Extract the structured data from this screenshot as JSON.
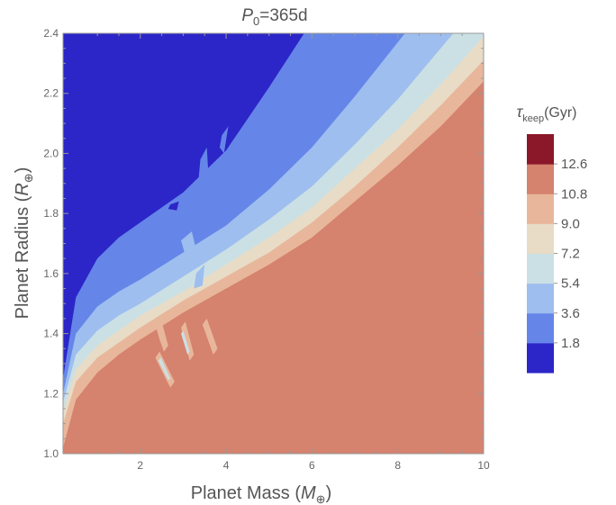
{
  "chart_data": {
    "type": "heatmap",
    "title": {
      "sym": "P",
      "sub": "0",
      "rest": "=365d"
    },
    "xlabel": {
      "text": "Planet Mass (",
      "sym": "M",
      "sub": "⊕",
      "close": ")"
    },
    "ylabel": {
      "text": "Planet Radius (",
      "sym": "R",
      "sub": "⊕",
      "close": ")"
    },
    "xlim": [
      0.2,
      10
    ],
    "ylim": [
      1.0,
      2.4
    ],
    "x_ticks": [
      2,
      4,
      6,
      8,
      10
    ],
    "y_ticks": [
      1.0,
      1.2,
      1.4,
      1.6,
      1.8,
      2.0,
      2.2,
      2.4
    ],
    "colorbar": {
      "label": {
        "sym": "τ",
        "sub": "keep",
        "rest": "(Gyr)"
      },
      "levels": [
        1.8,
        3.6,
        5.4,
        7.2,
        9.0,
        10.8,
        12.6
      ],
      "level_labels": [
        "1.8",
        "3.6",
        "5.4",
        "7.2",
        "9.0",
        "10.8",
        "12.6"
      ],
      "colors": [
        "#2c26c8",
        "#6586e8",
        "#9ebef0",
        "#cbe0e4",
        "#e8dcc7",
        "#e8b79b",
        "#d5826e",
        "#8a1829"
      ]
    },
    "boundaries_radius_vs_mass": {
      "mass": [
        0.2,
        0.5,
        1,
        1.5,
        2,
        3,
        4,
        5,
        6,
        7,
        8,
        9,
        10
      ],
      "contours": [
        {
          "level": 12.6,
          "radius": [
            1.02,
            1.18,
            1.27,
            1.33,
            1.38,
            1.47,
            1.55,
            1.63,
            1.72,
            1.84,
            1.96,
            2.09,
            2.24
          ]
        },
        {
          "level": 10.8,
          "radius": [
            1.1,
            1.24,
            1.32,
            1.37,
            1.42,
            1.51,
            1.59,
            1.67,
            1.77,
            1.89,
            2.02,
            2.16,
            2.31
          ]
        },
        {
          "level": 9.0,
          "radius": [
            1.14,
            1.28,
            1.36,
            1.41,
            1.46,
            1.54,
            1.63,
            1.72,
            1.82,
            1.95,
            2.08,
            2.23,
            2.39
          ]
        },
        {
          "level": 7.2,
          "radius": [
            1.17,
            1.33,
            1.41,
            1.46,
            1.5,
            1.59,
            1.68,
            1.78,
            1.89,
            2.03,
            2.18,
            2.35,
            2.52
          ]
        },
        {
          "level": 5.4,
          "radius": [
            1.2,
            1.4,
            1.49,
            1.54,
            1.58,
            1.67,
            1.76,
            1.88,
            2.02,
            2.19,
            2.37,
            2.55,
            2.72
          ]
        },
        {
          "level": 3.6,
          "radius": [
            1.25,
            1.52,
            1.65,
            1.72,
            1.77,
            1.87,
            2.01,
            2.22,
            2.44,
            2.65,
            2.85,
            3.0,
            3.1
          ]
        }
      ]
    }
  }
}
